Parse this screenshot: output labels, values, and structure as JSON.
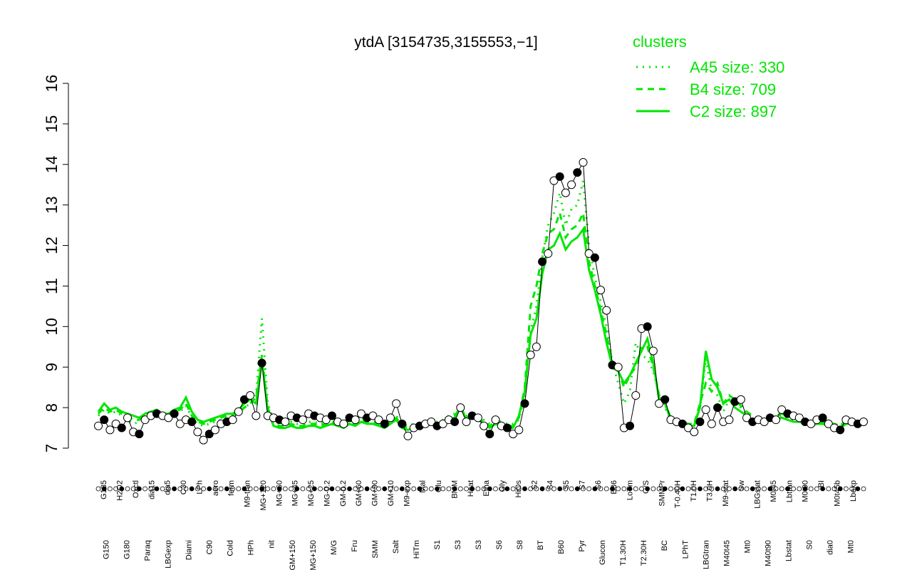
{
  "chart_data": {
    "type": "line",
    "title": "ytdA [3154735,3155553,−1]",
    "xlabel": "",
    "ylabel": "",
    "ylim": [
      7,
      16
    ],
    "yticks": [
      7,
      8,
      9,
      10,
      11,
      12,
      13,
      14,
      15,
      16
    ],
    "grid": false,
    "legend_placement": "top-right",
    "legend": {
      "title": "clusters",
      "entries": [
        {
          "label": "A45 size: 330",
          "style": "dotted"
        },
        {
          "label": "B4 size: 709",
          "style": "dashed"
        },
        {
          "label": "C2 size: 897",
          "style": "solid"
        }
      ]
    },
    "colors": {
      "clusters": "#00e600",
      "expression": "#000000",
      "points_fill": "#ffffff"
    },
    "x_labels_row1": [
      "G135",
      "H2O2",
      "Oxctl",
      "dia15",
      "dia5",
      "C30",
      "LPh",
      "aero",
      "ferm",
      "M9-tran",
      "MG+120",
      "MG+60",
      "MG+45",
      "MG+25",
      "MG-0.2",
      "GM-0.2",
      "GM+60",
      "GM+90",
      "GM+10",
      "M9-exp",
      "Mal",
      "Glu",
      "BMM",
      "Heat",
      "Etha",
      "Gly",
      "HiOs",
      "S2",
      "S4",
      "S5",
      "S7",
      "S6",
      "B36",
      "LoTm",
      "G/S",
      "SMMPr",
      "T-0.40H",
      "T1.0H",
      "T3.0H",
      "M9-stat",
      "Sw",
      "LBGstat",
      "M0t45",
      "Lbtran",
      "M0t90",
      "BI",
      "M0t45b",
      "Lbexp"
    ],
    "x_labels_row2": [
      "G150",
      "G180",
      "Paraq",
      "LBGexp",
      "Diami",
      "C90",
      "Cold",
      "HPh",
      "nit",
      "GM+150",
      "MG+150",
      "M/G",
      "Fru",
      "SMM",
      "Salt",
      "HiTm",
      "S1",
      "S3",
      "S3",
      "S6",
      "S8",
      "BT",
      "B60",
      "Pyr",
      "Glucon",
      "T1.30H",
      "T2.30H",
      "BC",
      "LPhT",
      "LBGtran",
      "M40t45",
      "Mt0",
      "M40t90",
      "Lbstat",
      "S0",
      "dia0",
      "Mt0"
    ],
    "series": [
      {
        "name": "expression",
        "values": [
          7.55,
          7.7,
          7.45,
          7.6,
          7.5,
          7.75,
          7.4,
          7.35,
          7.7,
          7.8,
          7.85,
          7.8,
          7.75,
          7.85,
          7.6,
          7.7,
          7.65,
          7.4,
          7.2,
          7.35,
          7.45,
          7.6,
          7.65,
          7.7,
          7.9,
          8.2,
          8.3,
          7.8,
          9.1,
          7.8,
          7.75,
          7.7,
          7.65,
          7.8,
          7.75,
          7.7,
          7.85,
          7.8,
          7.75,
          7.7,
          7.8,
          7.65,
          7.6,
          7.75,
          7.7,
          7.85,
          7.75,
          7.8,
          7.7,
          7.6,
          7.75,
          8.1,
          7.6,
          7.3,
          7.5,
          7.55,
          7.6,
          7.65,
          7.55,
          7.6,
          7.7,
          7.65,
          8.0,
          7.65,
          7.8,
          7.75,
          7.55,
          7.35,
          7.7,
          7.55,
          7.5,
          7.35,
          7.45,
          8.1,
          9.3,
          9.5,
          11.6,
          11.8,
          13.6,
          13.7,
          13.3,
          13.5,
          13.8,
          14.05,
          11.8,
          11.7,
          10.9,
          10.4,
          9.05,
          9.0,
          7.5,
          7.55,
          8.3,
          9.95,
          10.0,
          9.4,
          8.1,
          8.2,
          7.7,
          7.65,
          7.6,
          7.5,
          7.4,
          7.65,
          7.95,
          7.6,
          8.0,
          7.65,
          7.7,
          8.15,
          8.2,
          7.75,
          7.65,
          7.7,
          7.65,
          7.75,
          7.7,
          7.95,
          7.85,
          7.8,
          7.75,
          7.65,
          7.6,
          7.7,
          7.75,
          7.6,
          7.5,
          7.45,
          7.7,
          7.65,
          7.6,
          7.65
        ]
      },
      {
        "name": "A45 size: 330",
        "values": [
          7.8,
          7.95,
          7.85,
          7.9,
          7.8,
          7.7,
          7.6,
          7.65,
          7.75,
          7.8,
          7.85,
          7.8,
          7.75,
          7.85,
          7.9,
          8.05,
          7.75,
          7.6,
          7.55,
          7.6,
          7.65,
          7.7,
          7.75,
          7.8,
          7.85,
          8.0,
          8.1,
          8.3,
          10.2,
          8.1,
          7.7,
          7.65,
          7.6,
          7.65,
          7.6,
          7.6,
          7.65,
          7.65,
          7.6,
          7.65,
          7.7,
          7.65,
          7.6,
          7.7,
          7.65,
          7.75,
          7.7,
          7.7,
          7.65,
          7.6,
          7.7,
          7.8,
          7.6,
          7.55,
          7.6,
          7.6,
          7.65,
          7.7,
          7.65,
          7.7,
          7.8,
          7.85,
          8.0,
          7.8,
          7.85,
          7.8,
          7.7,
          7.6,
          7.7,
          7.65,
          7.6,
          7.6,
          7.7,
          8.3,
          9.9,
          10.5,
          11.7,
          12.5,
          12.8,
          13.3,
          12.5,
          12.9,
          13.0,
          13.6,
          12.0,
          11.2,
          10.6,
          10.0,
          9.1,
          8.6,
          8.1,
          8.4,
          9.6,
          9.3,
          9.2,
          8.9,
          8.3,
          8.0,
          7.7,
          7.7,
          7.65,
          7.6,
          7.6,
          8.0,
          9.2,
          8.4,
          8.3,
          7.9,
          8.2,
          8.1,
          8.0,
          7.85,
          7.75,
          7.7,
          7.7,
          7.75,
          7.75,
          7.8,
          7.75,
          7.7,
          7.7,
          7.65,
          7.6,
          7.65,
          7.65,
          7.6,
          7.6,
          7.55,
          7.65,
          7.65,
          7.6,
          7.6
        ]
      },
      {
        "name": "B4 size: 709",
        "values": [
          7.85,
          8.0,
          7.9,
          7.95,
          7.85,
          7.8,
          7.7,
          7.7,
          7.8,
          7.85,
          7.9,
          7.8,
          7.8,
          7.9,
          7.95,
          8.1,
          7.8,
          7.65,
          7.6,
          7.65,
          7.7,
          7.75,
          7.8,
          7.8,
          7.9,
          8.0,
          8.1,
          8.25,
          9.3,
          8.0,
          7.6,
          7.55,
          7.55,
          7.6,
          7.55,
          7.55,
          7.6,
          7.6,
          7.55,
          7.6,
          7.65,
          7.6,
          7.55,
          7.65,
          7.6,
          7.7,
          7.65,
          7.65,
          7.6,
          7.55,
          7.65,
          7.75,
          7.55,
          7.5,
          7.55,
          7.55,
          7.6,
          7.65,
          7.6,
          7.65,
          7.75,
          7.8,
          8.0,
          7.75,
          7.8,
          7.75,
          7.65,
          7.55,
          7.65,
          7.6,
          7.55,
          7.55,
          7.75,
          8.5,
          10.5,
          11.0,
          11.8,
          12.3,
          12.4,
          12.8,
          12.2,
          12.4,
          12.5,
          12.8,
          11.6,
          11.0,
          10.4,
          9.8,
          9.1,
          8.9,
          8.5,
          8.8,
          9.0,
          9.5,
          9.5,
          9.0,
          8.3,
          8.1,
          7.75,
          7.7,
          7.65,
          7.6,
          7.6,
          8.1,
          8.6,
          8.4,
          8.6,
          8.1,
          8.3,
          8.2,
          8.05,
          7.9,
          7.8,
          7.75,
          7.75,
          7.8,
          7.8,
          7.85,
          7.8,
          7.75,
          7.75,
          7.7,
          7.6,
          7.65,
          7.65,
          7.6,
          7.6,
          7.55,
          7.7,
          7.7,
          7.65,
          7.65
        ]
      },
      {
        "name": "C2 size: 897",
        "values": [
          7.9,
          8.1,
          7.95,
          8.0,
          7.9,
          7.85,
          7.8,
          7.75,
          7.85,
          7.9,
          7.95,
          7.85,
          7.85,
          7.95,
          8.0,
          8.25,
          7.9,
          7.7,
          7.65,
          7.7,
          7.75,
          7.8,
          7.85,
          7.85,
          7.95,
          8.1,
          8.2,
          8.1,
          9.2,
          7.9,
          7.55,
          7.5,
          7.5,
          7.55,
          7.5,
          7.5,
          7.55,
          7.55,
          7.5,
          7.55,
          7.6,
          7.55,
          7.5,
          7.6,
          7.55,
          7.65,
          7.6,
          7.6,
          7.55,
          7.5,
          7.6,
          7.7,
          7.5,
          7.45,
          7.5,
          7.5,
          7.55,
          7.6,
          7.55,
          7.6,
          7.7,
          7.75,
          8.05,
          7.7,
          7.75,
          7.7,
          7.6,
          7.5,
          7.6,
          7.55,
          7.5,
          7.5,
          7.8,
          8.4,
          9.8,
          10.2,
          11.3,
          11.9,
          12.0,
          12.3,
          11.9,
          12.1,
          12.2,
          12.4,
          11.4,
          10.9,
          10.3,
          9.6,
          9.0,
          8.9,
          8.6,
          8.8,
          9.1,
          9.4,
          9.7,
          9.1,
          8.2,
          8.1,
          7.7,
          7.65,
          7.6,
          7.55,
          7.55,
          8.0,
          9.4,
          8.7,
          8.5,
          8.1,
          8.2,
          8.0,
          7.9,
          7.8,
          7.7,
          7.65,
          7.65,
          7.7,
          7.7,
          7.75,
          7.7,
          7.65,
          7.65,
          7.6,
          7.55,
          7.6,
          7.6,
          7.55,
          7.55,
          7.5,
          7.6,
          7.6,
          7.6,
          7.6
        ]
      }
    ]
  }
}
